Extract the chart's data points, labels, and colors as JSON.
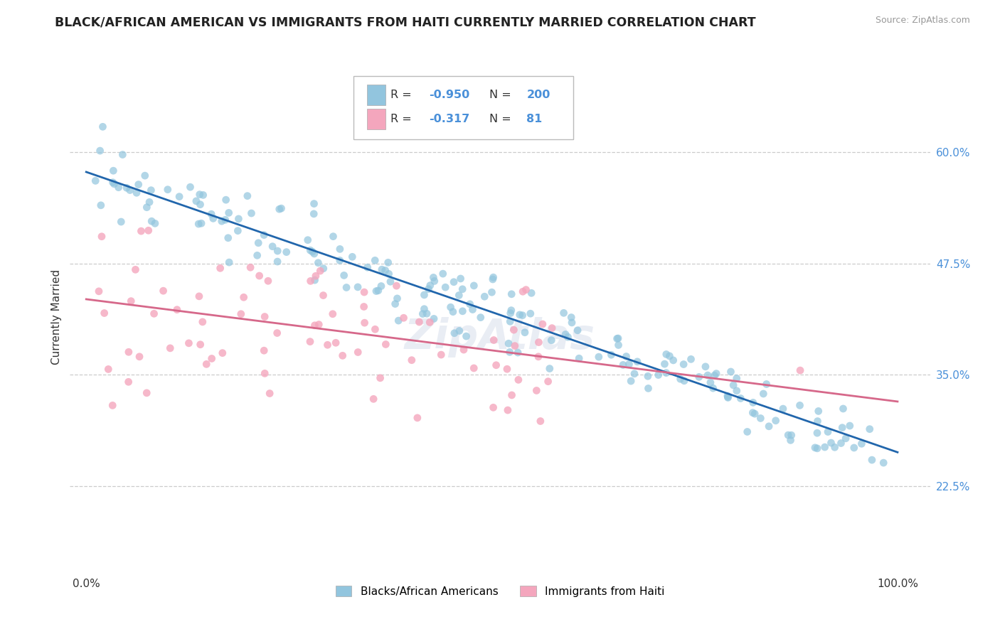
{
  "title": "BLACK/AFRICAN AMERICAN VS IMMIGRANTS FROM HAITI CURRENTLY MARRIED CORRELATION CHART",
  "source_text": "Source: ZipAtlas.com",
  "ylabel": "Currently Married",
  "y_tick_labels_right": [
    "60.0%",
    "47.5%",
    "35.0%",
    "22.5%"
  ],
  "y_tick_positions_right": [
    0.6,
    0.475,
    0.35,
    0.225
  ],
  "xlim": [
    -0.02,
    1.04
  ],
  "ylim": [
    0.13,
    0.7
  ],
  "blue_N": 200,
  "pink_N": 81,
  "blue_slope": -0.315,
  "blue_intercept": 0.578,
  "blue_noise": 0.02,
  "pink_slope": -0.115,
  "pink_intercept": 0.435,
  "pink_noise": 0.052,
  "blue_color": "#92c5de",
  "pink_color": "#f4a6bd",
  "blue_line_color": "#2166ac",
  "pink_line_color": "#d6688a",
  "legend_label_1": "Blacks/African Americans",
  "legend_label_2": "Immigrants from Haiti",
  "background_color": "#ffffff",
  "grid_color": "#cccccc",
  "watermark": "ZipAtlas",
  "title_fontsize": 12.5,
  "axis_label_fontsize": 11
}
